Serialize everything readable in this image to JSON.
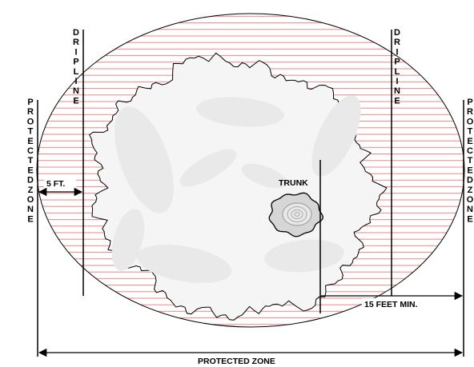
{
  "labels": {
    "dripline": "DRIPLINE",
    "protected_zone": "PROTECTED ZONE",
    "five_ft": "5 FT.",
    "trunk": "TRUNK",
    "fifteen_feet_min": "15 FEET MIN."
  },
  "colors": {
    "hatch": "#e87878",
    "canopy": "#f5f5f5",
    "canopy_shadow": "#e6e6e6",
    "outline": "#000000",
    "background": "#ffffff"
  }
}
